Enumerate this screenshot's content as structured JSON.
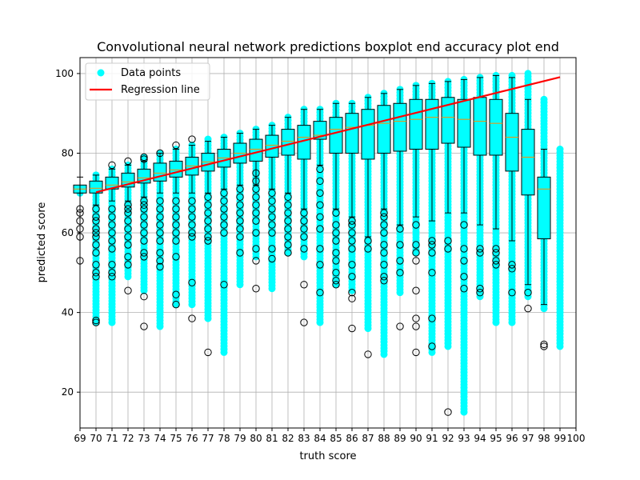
{
  "chart_data": {
    "type": "boxplot+scatter",
    "title": "Convolutional neural network predictions boxplot end accuracy plot end",
    "xlabel": "truth score",
    "ylabel": "predicted score",
    "xlim": [
      69,
      100
    ],
    "ylim": [
      11,
      104
    ],
    "xticks": [
      69,
      70,
      71,
      72,
      73,
      74,
      75,
      76,
      77,
      78,
      79,
      80,
      81,
      82,
      83,
      84,
      85,
      86,
      87,
      88,
      89,
      90,
      91,
      92,
      93,
      94,
      95,
      96,
      97,
      98,
      99,
      100
    ],
    "yticks": [
      20,
      40,
      60,
      80,
      100
    ],
    "grid": true,
    "legend_position": "top-left",
    "legend": [
      {
        "label": "Data points",
        "marker": "circle",
        "color": "#00ffff"
      },
      {
        "label": "Regression line",
        "marker": "line",
        "color": "#ff0000"
      }
    ],
    "colors": {
      "points": "#00ffff",
      "box_fill": "#00ffff",
      "regression": "#ff0000",
      "median": "#ff8c00",
      "grid": "#b0b0b0"
    },
    "regression_line": {
      "x": [
        70,
        99
      ],
      "y": [
        70.2,
        99.1
      ]
    },
    "boxes": [
      {
        "x": 69,
        "q1": 70.0,
        "median": 71.0,
        "q3": 72.0,
        "whisker_low": 70,
        "whisker_high": 74,
        "outliers": [
          66,
          65,
          63,
          61,
          59,
          53
        ]
      },
      {
        "x": 70,
        "q1": 70.0,
        "median": 71.2,
        "q3": 73.0,
        "whisker_low": 67,
        "whisker_high": 74.5,
        "outliers": [
          66,
          64,
          63,
          61,
          60,
          59,
          57,
          55,
          52,
          50,
          49,
          38,
          37.5
        ]
      },
      {
        "x": 71,
        "q1": 71.0,
        "median": 72.0,
        "q3": 74.0,
        "whisker_low": 68,
        "whisker_high": 76,
        "outliers": [
          77,
          66,
          64,
          62,
          60,
          58,
          56,
          52,
          50,
          49
        ]
      },
      {
        "x": 72,
        "q1": 71.5,
        "median": 72.8,
        "q3": 75.0,
        "whisker_low": 68,
        "whisker_high": 77,
        "outliers": [
          78,
          67,
          66,
          65,
          63,
          61,
          59,
          57,
          54,
          52,
          45.5
        ]
      },
      {
        "x": 73,
        "q1": 72.5,
        "median": 73.8,
        "q3": 76.0,
        "whisker_low": 69,
        "whisker_high": 78,
        "outliers": [
          79,
          78.5,
          68,
          67,
          66,
          64,
          62,
          60,
          58,
          55,
          54,
          44,
          36.5
        ]
      },
      {
        "x": 74,
        "q1": 73.0,
        "median": 75.0,
        "q3": 77.5,
        "whisker_low": 70,
        "whisker_high": 80,
        "outliers": [
          80,
          68,
          66,
          64,
          62,
          60,
          58,
          55,
          53,
          51.5
        ]
      },
      {
        "x": 75,
        "q1": 74.0,
        "median": 75.8,
        "q3": 78.0,
        "whisker_low": 70,
        "whisker_high": 81,
        "outliers": [
          82,
          68,
          66,
          64,
          62,
          60,
          58,
          54,
          44.5,
          42
        ]
      },
      {
        "x": 76,
        "q1": 74.5,
        "median": 76.8,
        "q3": 79.0,
        "whisker_low": 70,
        "whisker_high": 82,
        "outliers": [
          83.5,
          68,
          66,
          64,
          62,
          60,
          59,
          47.5,
          38.5
        ]
      },
      {
        "x": 77,
        "q1": 75.5,
        "median": 77.8,
        "q3": 80.0,
        "whisker_low": 70,
        "whisker_high": 83,
        "outliers": [
          69,
          67,
          65,
          63,
          61,
          59,
          58,
          30
        ]
      },
      {
        "x": 78,
        "q1": 76.5,
        "median": 78.8,
        "q3": 81.0,
        "whisker_low": 71,
        "whisker_high": 84,
        "outliers": [
          70,
          68,
          66,
          64,
          62,
          60,
          47
        ]
      },
      {
        "x": 79,
        "q1": 77.5,
        "median": 80.0,
        "q3": 82.5,
        "whisker_low": 72,
        "whisker_high": 85,
        "outliers": [
          71,
          69,
          67,
          65,
          63,
          61,
          59,
          55
        ]
      },
      {
        "x": 80,
        "q1": 78.0,
        "median": 81.0,
        "q3": 83.5,
        "whisker_low": 72,
        "whisker_high": 86,
        "outliers": [
          75,
          73,
          71,
          69,
          67,
          65,
          63,
          60,
          56,
          53,
          46
        ]
      },
      {
        "x": 81,
        "q1": 79.0,
        "median": 82.0,
        "q3": 84.5,
        "whisker_low": 71,
        "whisker_high": 87,
        "outliers": [
          70,
          68,
          66,
          64,
          62,
          60,
          56,
          53.5
        ]
      },
      {
        "x": 82,
        "q1": 79.5,
        "median": 83.0,
        "q3": 86.0,
        "whisker_low": 70,
        "whisker_high": 89,
        "outliers": [
          69,
          67,
          65,
          63,
          61,
          59,
          57,
          55
        ]
      },
      {
        "x": 83,
        "q1": 78.5,
        "median": 84.0,
        "q3": 87.0,
        "whisker_low": 66,
        "whisker_high": 91,
        "outliers": [
          65,
          63,
          61,
          59,
          56,
          47,
          37.5
        ]
      },
      {
        "x": 84,
        "q1": 83.5,
        "median": 84.5,
        "q3": 88.0,
        "whisker_low": 77,
        "whisker_high": 91,
        "outliers": [
          76,
          73,
          70,
          67,
          64,
          61,
          56,
          52,
          45
        ]
      },
      {
        "x": 85,
        "q1": 80.0,
        "median": 86.0,
        "q3": 89.0,
        "whisker_low": 66,
        "whisker_high": 92.5,
        "outliers": [
          65,
          62,
          60,
          58,
          55,
          53,
          50,
          48,
          47
        ]
      },
      {
        "x": 86,
        "q1": 80.0,
        "median": 86.5,
        "q3": 90.0,
        "whisker_low": 64,
        "whisker_high": 92.5,
        "outliers": [
          63,
          62,
          60,
          58,
          56,
          52,
          49,
          45,
          43.5,
          36
        ]
      },
      {
        "x": 87,
        "q1": 78.5,
        "median": 87.0,
        "q3": 91.0,
        "whisker_low": 59,
        "whisker_high": 94,
        "outliers": [
          58,
          56,
          29.5
        ]
      },
      {
        "x": 88,
        "q1": 80.0,
        "median": 87.5,
        "q3": 92.0,
        "whisker_low": 66,
        "whisker_high": 95,
        "outliers": [
          65,
          64,
          62,
          60,
          57,
          55,
          52,
          49,
          48
        ]
      },
      {
        "x": 89,
        "q1": 80.5,
        "median": 88.0,
        "q3": 92.5,
        "whisker_low": 62,
        "whisker_high": 96,
        "outliers": [
          61,
          57,
          53,
          50,
          36.5
        ]
      },
      {
        "x": 90,
        "q1": 81.0,
        "median": 88.5,
        "q3": 93.5,
        "whisker_low": 64,
        "whisker_high": 97,
        "outliers": [
          62,
          57,
          55,
          53,
          45.5,
          38.5,
          36.5,
          30
        ]
      },
      {
        "x": 91,
        "q1": 81.0,
        "median": 89.0,
        "q3": 93.5,
        "whisker_low": 63,
        "whisker_high": 97.5,
        "outliers": [
          58,
          57,
          55,
          50,
          38.5,
          31.5
        ]
      },
      {
        "x": 92,
        "q1": 82.5,
        "median": 89.0,
        "q3": 94.0,
        "whisker_low": 65,
        "whisker_high": 98,
        "outliers": [
          58,
          56,
          15
        ]
      },
      {
        "x": 93,
        "q1": 81.5,
        "median": 88.5,
        "q3": 93.5,
        "whisker_low": 65,
        "whisker_high": 98.5,
        "outliers": [
          62,
          56,
          53,
          49,
          46
        ]
      },
      {
        "x": 94,
        "q1": 79.5,
        "median": 88.0,
        "q3": 94.0,
        "whisker_low": 62,
        "whisker_high": 99,
        "outliers": [
          56,
          55,
          46,
          45
        ]
      },
      {
        "x": 95,
        "q1": 79.5,
        "median": 87.5,
        "q3": 93.5,
        "whisker_low": 61,
        "whisker_high": 99.5,
        "outliers": [
          56,
          55,
          53,
          52
        ]
      },
      {
        "x": 96,
        "q1": 75.5,
        "median": 84.0,
        "q3": 90.0,
        "whisker_low": 58,
        "whisker_high": 99,
        "outliers": [
          52,
          51,
          45
        ]
      },
      {
        "x": 97,
        "q1": 69.5,
        "median": 79.0,
        "q3": 86.0,
        "whisker_low": 47,
        "whisker_high": 93.5,
        "outliers": [
          45,
          41
        ]
      },
      {
        "x": 98,
        "q1": 58.5,
        "median": 71.0,
        "q3": 74.0,
        "whisker_low": 42,
        "whisker_high": 81,
        "outliers": [
          32,
          31.5
        ]
      }
    ],
    "data_point_ranges": [
      {
        "x": 69,
        "min": 70,
        "max": 71
      },
      {
        "x": 70,
        "min": 37.5,
        "max": 74.5
      },
      {
        "x": 71,
        "min": 37.5,
        "max": 76
      },
      {
        "x": 72,
        "min": 49,
        "max": 77
      },
      {
        "x": 73,
        "min": 45.5,
        "max": 79
      },
      {
        "x": 74,
        "min": 36.5,
        "max": 80
      },
      {
        "x": 75,
        "min": 42,
        "max": 81
      },
      {
        "x": 76,
        "min": 42,
        "max": 82
      },
      {
        "x": 77,
        "min": 38.5,
        "max": 83.5
      },
      {
        "x": 78,
        "min": 30,
        "max": 84
      },
      {
        "x": 79,
        "min": 47,
        "max": 85
      },
      {
        "x": 80,
        "min": 54,
        "max": 86
      },
      {
        "x": 81,
        "min": 46,
        "max": 87
      },
      {
        "x": 82,
        "min": 55,
        "max": 89
      },
      {
        "x": 83,
        "min": 54,
        "max": 91
      },
      {
        "x": 84,
        "min": 37.5,
        "max": 91
      },
      {
        "x": 85,
        "min": 47,
        "max": 92.5
      },
      {
        "x": 86,
        "min": 45.5,
        "max": 92.5
      },
      {
        "x": 87,
        "min": 36,
        "max": 94
      },
      {
        "x": 88,
        "min": 29.5,
        "max": 95
      },
      {
        "x": 89,
        "min": 45,
        "max": 96
      },
      {
        "x": 90,
        "min": 55,
        "max": 97
      },
      {
        "x": 91,
        "min": 30,
        "max": 97.5
      },
      {
        "x": 92,
        "min": 31.5,
        "max": 98
      },
      {
        "x": 93,
        "min": 15,
        "max": 98.5
      },
      {
        "x": 94,
        "min": 44,
        "max": 99
      },
      {
        "x": 95,
        "min": 37.5,
        "max": 99.5
      },
      {
        "x": 96,
        "min": 37.5,
        "max": 99.5
      },
      {
        "x": 97,
        "min": 44,
        "max": 100
      },
      {
        "x": 98,
        "min": 41,
        "max": 93.5
      },
      {
        "x": 99,
        "min": 31.5,
        "max": 81
      }
    ]
  }
}
